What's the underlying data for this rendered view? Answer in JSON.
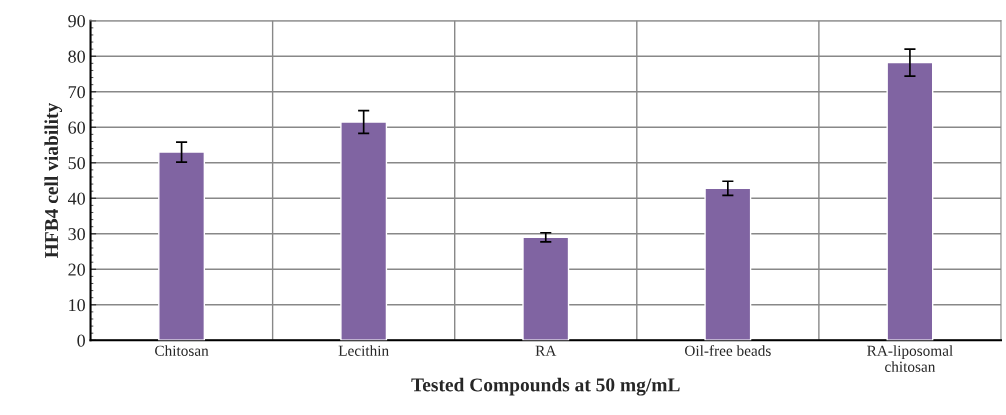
{
  "chart_data": {
    "type": "bar",
    "xlabel": "Tested Compounds at 50 mg/mL",
    "ylabel": "HFB4 cell viability",
    "categories": [
      "Chitosan",
      "Lecithin",
      "RA",
      "Oil-free beads",
      "RA-liposomal\nchitosan"
    ],
    "series": [
      {
        "color": "#8064a2",
        "values": [
          53,
          61.5,
          29,
          42.8,
          78.2
        ],
        "errors": [
          2.8,
          3.2,
          1.3,
          2,
          3.8
        ]
      }
    ],
    "ylim": [
      0,
      90
    ],
    "yticks": [
      0,
      10,
      20,
      30,
      40,
      50,
      60,
      70,
      80,
      90
    ],
    "grid": true
  }
}
